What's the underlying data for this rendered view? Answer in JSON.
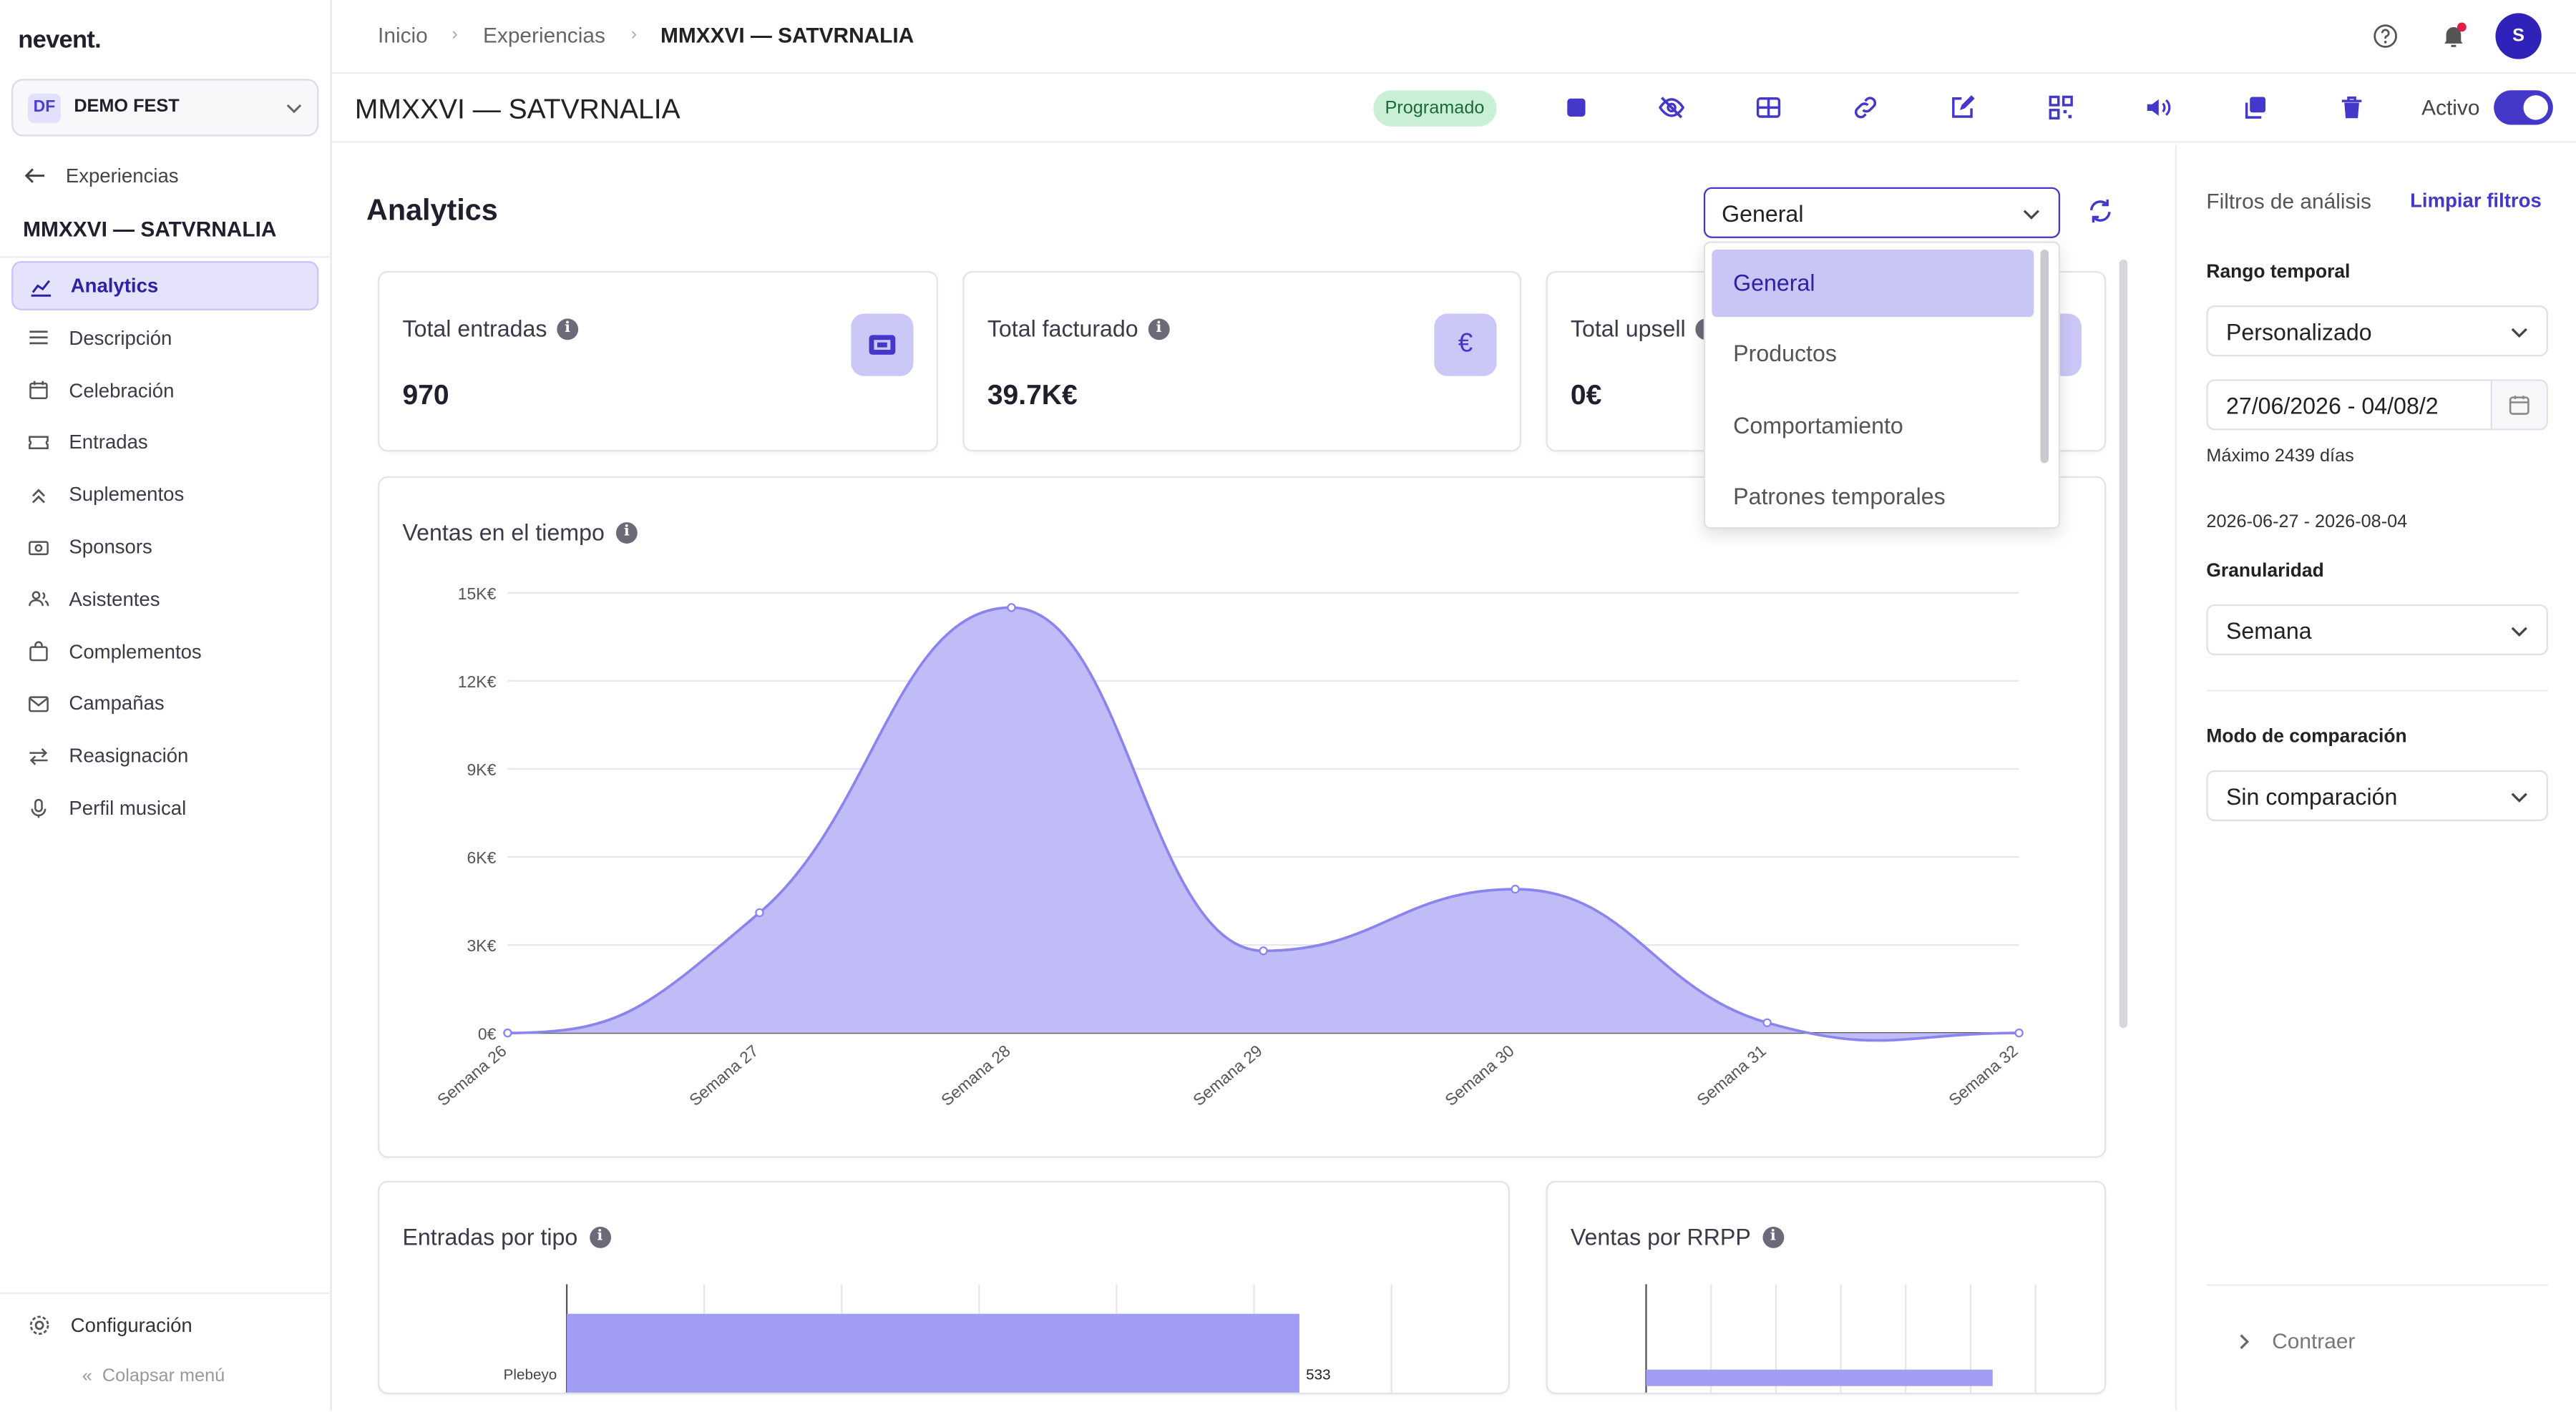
{
  "app": {
    "logo": "nevent."
  },
  "org": {
    "badge": "DF",
    "name": "DEMO FEST"
  },
  "sidebar": {
    "back_label": "Experiencias",
    "event_name": "MMXXVI — SATVRNALIA",
    "items": [
      {
        "label": "Analytics",
        "icon": "analytics-icon",
        "active": true
      },
      {
        "label": "Descripción",
        "icon": "list-icon"
      },
      {
        "label": "Celebración",
        "icon": "calendar-icon"
      },
      {
        "label": "Entradas",
        "icon": "ticket-icon"
      },
      {
        "label": "Suplementos",
        "icon": "upgrade-icon"
      },
      {
        "label": "Sponsors",
        "icon": "money-icon"
      },
      {
        "label": "Asistentes",
        "icon": "people-icon"
      },
      {
        "label": "Complementos",
        "icon": "bag-icon"
      },
      {
        "label": "Campañas",
        "icon": "mail-icon"
      },
      {
        "label": "Reasignación",
        "icon": "swap-icon"
      },
      {
        "label": "Perfil musical",
        "icon": "mic-icon"
      }
    ],
    "config_label": "Configuración",
    "collapse_label": "Colapsar menú"
  },
  "breadcrumb": {
    "items": [
      "Inicio",
      "Experiencias",
      "MMXXVI — SATVRNALIA"
    ]
  },
  "header": {
    "user_initial": "S"
  },
  "titlebar": {
    "title": "MMXXVI — SATVRNALIA",
    "status": "Programado",
    "active_label": "Activo",
    "active": true,
    "status_color": "#c9efd5"
  },
  "main": {
    "heading": "Analytics",
    "view_select": {
      "value": "General",
      "options": [
        "General",
        "Productos",
        "Comportamiento",
        "Patrones temporales"
      ]
    },
    "kpis": [
      {
        "label": "Total entradas",
        "value": "970",
        "icon": "ticket-icon"
      },
      {
        "label": "Total facturado",
        "value": "39.7K€",
        "icon": "euro-icon"
      },
      {
        "label": "Total upsell",
        "value": "0€",
        "icon": "euro-icon"
      }
    ],
    "sales_chart_title": "Ventas en el tiempo",
    "tickets_chart_title": "Entradas por tipo",
    "rrpp_chart_title": "Ventas por RRPP"
  },
  "chart_data": [
    {
      "type": "area",
      "title": "Ventas en el tiempo",
      "x": [
        "Semana 26",
        "Semana 27",
        "Semana 28",
        "Semana 29",
        "Semana 30",
        "Semana 31",
        "Semana 32"
      ],
      "series": [
        {
          "values": [
            0,
            4100,
            14500,
            2800,
            4900,
            350,
            0
          ]
        }
      ],
      "yticks": [
        "0€",
        "3K€",
        "6K€",
        "9K€",
        "12K€",
        "15K€"
      ],
      "ylim": [
        0,
        15000
      ],
      "color": "#8b84ee",
      "grid": true
    },
    {
      "type": "bar",
      "title": "Entradas por tipo",
      "orientation": "horizontal",
      "categories": [
        "Plebeyo"
      ],
      "values": [
        533
      ],
      "xlim": [
        0,
        600
      ],
      "color": "#a19df3"
    },
    {
      "type": "bar",
      "title": "Ventas por RRPP",
      "orientation": "horizontal",
      "color": "#a19df3"
    }
  ],
  "filters": {
    "title": "Filtros de análisis",
    "clear_label": "Limpiar filtros",
    "range_label": "Rango temporal",
    "range_value": "Personalizado",
    "date_value": "27/06/2026 - 04/08/2",
    "max_days_note": "Máximo 2439 días",
    "date_summary": "2026-06-27 - 2026-08-04",
    "granularity_label": "Granularidad",
    "granularity_value": "Semana",
    "compare_label": "Modo de comparación",
    "compare_value": "Sin comparación",
    "collapse_label": "Contraer"
  }
}
